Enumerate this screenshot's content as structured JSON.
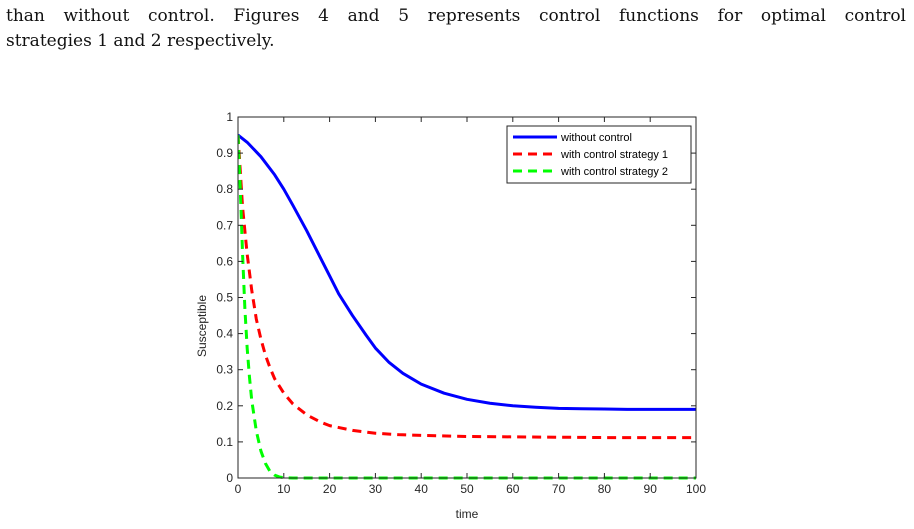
{
  "paragraph": {
    "line1": "than without control. Figures 4 and 5 represents control functions for optimal control",
    "line2": "strategies 1 and 2 respectively."
  },
  "chart_data": {
    "type": "line",
    "title": "",
    "xlabel": "time",
    "ylabel": "Susceptible",
    "xlim": [
      0,
      100
    ],
    "ylim": [
      0,
      1
    ],
    "xticks": [
      0,
      10,
      20,
      30,
      40,
      50,
      60,
      70,
      80,
      90,
      100
    ],
    "yticks": [
      0,
      0.1,
      0.2,
      0.3,
      0.4,
      0.5,
      0.6,
      0.7,
      0.8,
      0.9,
      1
    ],
    "ytick_labels": [
      "0",
      "0.1",
      "0.2",
      "0.3",
      "0.4",
      "0.5",
      "0.6",
      "0.7",
      "0.8",
      "0.9",
      "1"
    ],
    "xtick_labels": [
      "0",
      "10",
      "20",
      "30",
      "40",
      "50",
      "60",
      "70",
      "80",
      "90",
      "100"
    ],
    "grid": false,
    "legend_position": "top-right",
    "series": [
      {
        "name": "without control",
        "color": "#0000ff",
        "style": "solid",
        "x": [
          0,
          2,
          5,
          8,
          10,
          12,
          15,
          18,
          20,
          22,
          25,
          28,
          30,
          33,
          36,
          40,
          45,
          50,
          55,
          60,
          65,
          70,
          75,
          80,
          85,
          90,
          95,
          100
        ],
        "y": [
          0.95,
          0.93,
          0.89,
          0.84,
          0.8,
          0.755,
          0.685,
          0.61,
          0.56,
          0.51,
          0.45,
          0.395,
          0.36,
          0.32,
          0.29,
          0.26,
          0.235,
          0.218,
          0.207,
          0.2,
          0.196,
          0.193,
          0.192,
          0.191,
          0.19,
          0.19,
          0.19,
          0.19
        ]
      },
      {
        "name": "with control strategy 1",
        "color": "#ff0000",
        "style": "dashed",
        "x": [
          0,
          1,
          2,
          3,
          4,
          5,
          6,
          7,
          8,
          10,
          12,
          15,
          18,
          20,
          25,
          30,
          35,
          40,
          50,
          60,
          70,
          80,
          90,
          100
        ],
        "y": [
          0.95,
          0.75,
          0.62,
          0.52,
          0.44,
          0.385,
          0.34,
          0.305,
          0.275,
          0.235,
          0.205,
          0.175,
          0.155,
          0.145,
          0.132,
          0.124,
          0.12,
          0.118,
          0.115,
          0.114,
          0.113,
          0.112,
          0.112,
          0.112
        ]
      },
      {
        "name": "with control strategy 2",
        "color": "#00ff00",
        "style": "dashed",
        "x": [
          0,
          0.5,
          1,
          1.5,
          2,
          2.5,
          3,
          4,
          5,
          6,
          7,
          8,
          9,
          10,
          12,
          15,
          20,
          30,
          40,
          50,
          60,
          70,
          80,
          90,
          100
        ],
        "y": [
          0.95,
          0.8,
          0.62,
          0.47,
          0.36,
          0.28,
          0.215,
          0.13,
          0.075,
          0.04,
          0.018,
          0.008,
          0.003,
          0.001,
          0,
          0,
          0,
          0,
          0,
          0,
          0,
          0,
          0,
          0,
          0
        ]
      }
    ]
  }
}
